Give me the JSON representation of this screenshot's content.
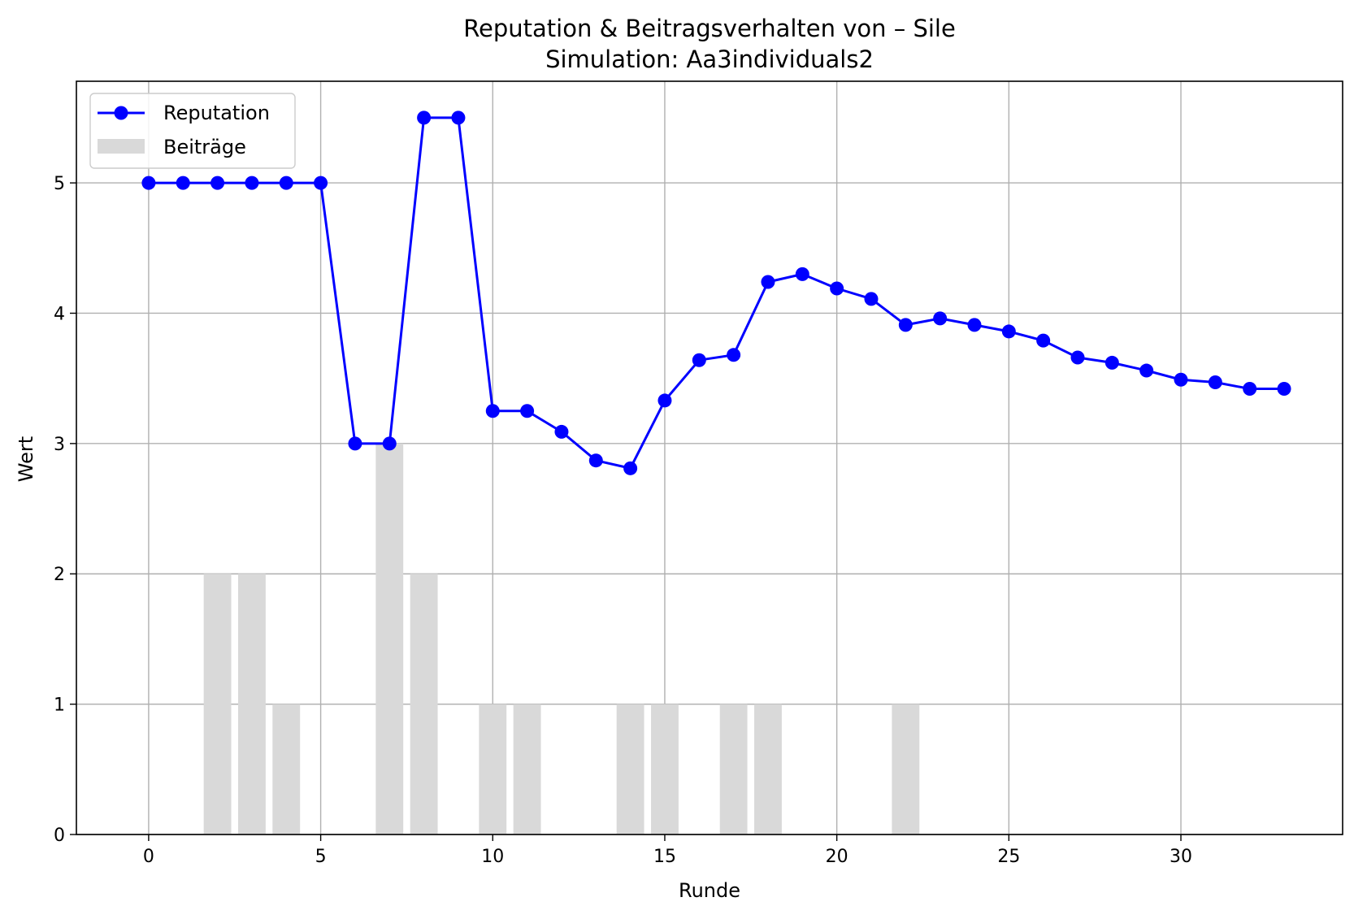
{
  "chart_data": {
    "type": "line",
    "title": "Reputation & Beitragsverhalten von – Sile",
    "subtitle": "Simulation: Aa3individuals2",
    "xlabel": "Runde",
    "ylabel": "Wert",
    "xlim": [
      -2.1,
      34.7
    ],
    "ylim": [
      0,
      5.78
    ],
    "xticks": [
      0,
      5,
      10,
      15,
      20,
      25,
      30
    ],
    "yticks": [
      0,
      1,
      2,
      3,
      4,
      5
    ],
    "grid": true,
    "legend_position": "top-left",
    "series": [
      {
        "name": "Reputation",
        "kind": "line",
        "color": "#0000ff",
        "marker": "circle",
        "x": [
          0,
          1,
          2,
          3,
          4,
          5,
          6,
          7,
          8,
          9,
          10,
          11,
          12,
          13,
          14,
          15,
          16,
          17,
          18,
          19,
          20,
          21,
          22,
          23,
          24,
          25,
          26,
          27,
          28,
          29,
          30,
          31,
          32,
          33
        ],
        "values": [
          5.0,
          5.0,
          5.0,
          5.0,
          5.0,
          5.0,
          3.0,
          3.0,
          5.5,
          5.5,
          3.25,
          3.25,
          3.09,
          2.87,
          2.81,
          3.33,
          3.64,
          3.68,
          4.24,
          4.3,
          4.19,
          4.11,
          3.91,
          3.96,
          3.91,
          3.86,
          3.79,
          3.66,
          3.62,
          3.56,
          3.49,
          3.47,
          3.42,
          3.42
        ]
      },
      {
        "name": "Beiträge",
        "kind": "bar",
        "color": "#d9d9d9",
        "x": [
          0,
          1,
          2,
          3,
          4,
          5,
          6,
          7,
          8,
          9,
          10,
          11,
          12,
          13,
          14,
          15,
          16,
          17,
          18,
          19,
          20,
          21,
          22,
          23,
          24,
          25,
          26,
          27,
          28,
          29,
          30,
          31,
          32,
          33
        ],
        "values": [
          0,
          0,
          2,
          2,
          1,
          0,
          0,
          3,
          2,
          0,
          1,
          1,
          0,
          0,
          1,
          1,
          0,
          1,
          1,
          0,
          0,
          0,
          1,
          0,
          0,
          0,
          0,
          0,
          0,
          0,
          0,
          0,
          0,
          0
        ]
      }
    ]
  }
}
